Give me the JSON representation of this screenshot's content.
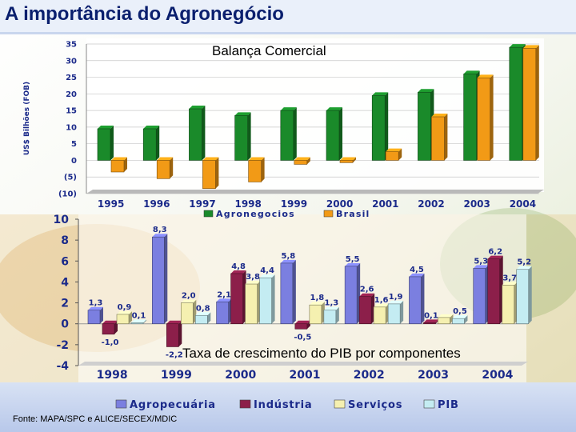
{
  "page": {
    "title": "A importância do Agronegócio",
    "source": "Fonte: MAPA/SPC e ALICE/SECEX/MDIC"
  },
  "colors": {
    "title": "#0a1f6e",
    "agronegocios": "#1a8a2a",
    "brasil": "#f29a16",
    "agropecuaria": "#7b7fe0",
    "industria": "#8c1f4a",
    "servicos": "#f5f0b0",
    "pib": "#c4ecf2",
    "axis_text": "#1b2a8a"
  },
  "chart_data": [
    {
      "type": "bar",
      "title": "Balança Comercial",
      "ylabel": "US$ Bilhões (FOB)",
      "ylim": [
        -10,
        35
      ],
      "yticks": [
        "35",
        "30",
        "25",
        "20",
        "15",
        "10",
        "5",
        "0",
        "(5)",
        "(10)"
      ],
      "ytick_values": [
        35,
        30,
        25,
        20,
        15,
        10,
        5,
        0,
        -5,
        -10
      ],
      "categories": [
        "1995",
        "1996",
        "1997",
        "1998",
        "1999",
        "2000",
        "2001",
        "2002",
        "2003",
        "2004"
      ],
      "series": [
        {
          "name": "Agronegocios",
          "values": [
            9.5,
            9.5,
            15.5,
            13.5,
            15,
            15,
            19.5,
            20.5,
            26,
            34
          ]
        },
        {
          "name": "Brasil",
          "values": [
            -3.5,
            -5.5,
            -8.5,
            -6.5,
            -1.2,
            -0.7,
            2.6,
            13.1,
            24.8,
            33.7
          ]
        }
      ],
      "legend_position": "bottom",
      "grid": true
    },
    {
      "type": "bar",
      "title": "Taxa de crescimento do PIB por componentes",
      "ylim": [
        -4,
        10
      ],
      "yticks": [
        "10",
        "8",
        "6",
        "4",
        "2",
        "0",
        "-2",
        "-4"
      ],
      "ytick_values": [
        10,
        8,
        6,
        4,
        2,
        0,
        -2,
        -4
      ],
      "categories": [
        "1998",
        "1999",
        "2000",
        "2001",
        "2002",
        "2003",
        "2004"
      ],
      "series": [
        {
          "name": "Agropecuária",
          "values": [
            1.3,
            8.3,
            2.1,
            5.8,
            5.5,
            4.5,
            5.3
          ],
          "labels": [
            "1,3",
            "8,3",
            "2,1",
            "5,8",
            "5,5",
            "4,5",
            "5,3"
          ]
        },
        {
          "name": "Indústria",
          "values": [
            -1.0,
            -2.2,
            4.8,
            -0.5,
            2.6,
            0.1,
            6.2
          ],
          "labels": [
            "-1,0",
            "-2,2",
            "4,8",
            "-0,5",
            "2,6",
            "0,1",
            "6,2"
          ]
        },
        {
          "name": "Serviços",
          "values": [
            0.9,
            2.0,
            3.8,
            1.8,
            1.6,
            0.6,
            3.7
          ],
          "labels": [
            "0,9",
            "2,0",
            "3,8",
            "1,8",
            "1,6",
            "",
            "3,7"
          ]
        },
        {
          "name": "PIB",
          "values": [
            0.1,
            0.8,
            4.4,
            1.3,
            1.9,
            0.5,
            5.2
          ],
          "labels": [
            "0,1",
            "0,8",
            "4,4",
            "1,3",
            "1,9",
            "0,5",
            "5,2"
          ]
        }
      ],
      "legend_position": "bottom"
    }
  ]
}
